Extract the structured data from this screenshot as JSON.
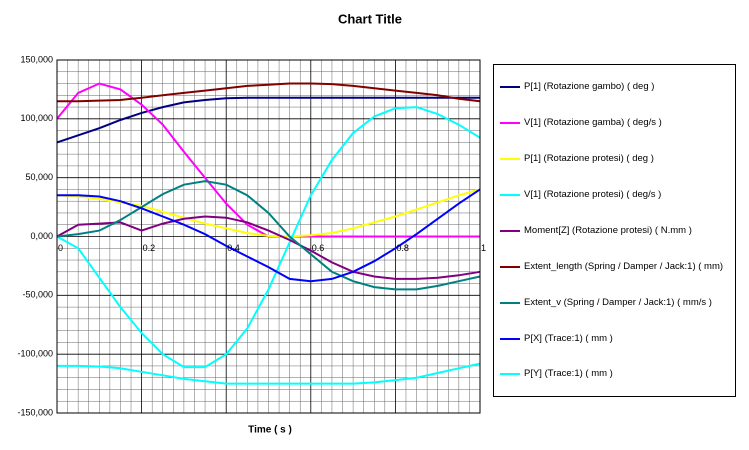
{
  "chart_data": {
    "type": "line",
    "title": "Chart Title",
    "x_label": "Time ( s )",
    "x": [
      0,
      0.05,
      0.1,
      0.15,
      0.2,
      0.25,
      0.3,
      0.35,
      0.4,
      0.45,
      0.5,
      0.55,
      0.6,
      0.65,
      0.7,
      0.75,
      0.8,
      0.85,
      0.9,
      0.95,
      1
    ],
    "xlim": [
      0,
      1
    ],
    "xticks": [
      0,
      0.2,
      0.4,
      0.6,
      0.8,
      1
    ],
    "ylim": [
      -150000,
      150000
    ],
    "yticks": [
      {
        "value": -150000,
        "label": "-150,000"
      },
      {
        "value": -100000,
        "label": "-100,000"
      },
      {
        "value": -50000,
        "label": "-50,000"
      },
      {
        "value": 0,
        "label": "0,000"
      },
      {
        "value": 50000,
        "label": "50,000"
      },
      {
        "value": 100000,
        "label": "100,000"
      },
      {
        "value": 150000,
        "label": "150,000"
      }
    ],
    "grid": true,
    "x_minor_per_major": 8,
    "y_minor_per_major": 5,
    "legend": "right",
    "series": [
      {
        "name": "P[1] (Rotazione gambo) ( deg )",
        "color": "#000080",
        "values": [
          80000,
          86000,
          92000,
          99000,
          105000,
          110000,
          114000,
          116000,
          117500,
          118000,
          118000,
          118000,
          118000,
          118000,
          118000,
          118000,
          118000,
          118000,
          118000,
          118000,
          118000
        ]
      },
      {
        "name": "V[1] (Rotazione gamba) ( deg/s )",
        "color": "#ff00ff",
        "values": [
          100000,
          122000,
          130000,
          125000,
          112000,
          95000,
          72000,
          50000,
          28000,
          10000,
          0,
          0,
          0,
          0,
          0,
          0,
          0,
          0,
          0,
          0,
          0
        ]
      },
      {
        "name": "P[1] (Rotazione protesi) ( deg )",
        "color": "#ffff00",
        "values": [
          35000,
          34000,
          32000,
          29000,
          26000,
          21000,
          16000,
          11000,
          7000,
          3000,
          500,
          0,
          1000,
          3000,
          7000,
          12000,
          17000,
          23000,
          29000,
          35000,
          40000
        ]
      },
      {
        "name": "V[1] (Rotazione protesi) ( deg/s )",
        "color": "#00ffff",
        "values": [
          0,
          -10000,
          -35000,
          -60000,
          -82000,
          -100000,
          -111000,
          -111000,
          -100000,
          -78000,
          -45000,
          -5000,
          35000,
          65000,
          88000,
          102000,
          109000,
          110000,
          104000,
          95000,
          84000
        ]
      },
      {
        "name": "Moment[Z] (Rotazione protesi) ( N.mm )",
        "color": "#800080",
        "values": [
          0,
          10000,
          11000,
          12000,
          5000,
          11000,
          15000,
          17000,
          16000,
          12000,
          5000,
          -3000,
          -12000,
          -22000,
          -30000,
          -34000,
          -36000,
          -36000,
          -35000,
          -33000,
          -30000
        ]
      },
      {
        "name": "Extent_length (Spring / Damper / Jack:1) ( mm)",
        "color": "#800000",
        "values": [
          115000,
          115000,
          115500,
          116000,
          118000,
          120000,
          122000,
          124000,
          126000,
          128000,
          129000,
          130000,
          130000,
          129500,
          128000,
          126000,
          124000,
          122000,
          120000,
          117000,
          115000
        ]
      },
      {
        "name": "Extent_v (Spring / Damper / Jack:1) ( mm/s )",
        "color": "#008080",
        "values": [
          0,
          2000,
          5000,
          14000,
          25000,
          36000,
          44000,
          47000,
          44000,
          35000,
          20000,
          0,
          -15000,
          -30000,
          -38000,
          -43000,
          -45000,
          -45000,
          -42000,
          -38000,
          -34000
        ]
      },
      {
        "name": "P[X] (Trace:1) ( mm )",
        "color": "#0000ff",
        "values": [
          35000,
          35000,
          34000,
          30000,
          24000,
          17000,
          10000,
          2000,
          -8000,
          -17000,
          -26000,
          -36000,
          -38000,
          -36000,
          -30000,
          -21000,
          -10000,
          2000,
          15000,
          28000,
          40000
        ]
      },
      {
        "name": "P[Y] (Trace:1) ( mm )",
        "color": "#00ffff",
        "values": [
          -110000,
          -110000,
          -110500,
          -112000,
          -115000,
          -118000,
          -121000,
          -123000,
          -125000,
          -125000,
          -125000,
          -125000,
          -125000,
          -125000,
          -125000,
          -124000,
          -122000,
          -120000,
          -116000,
          -112000,
          -108000
        ]
      }
    ]
  }
}
